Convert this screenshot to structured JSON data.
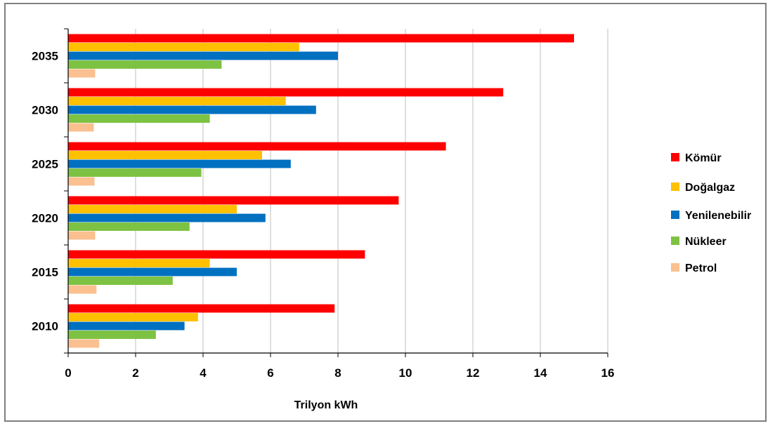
{
  "chart_data": {
    "type": "bar",
    "orientation": "horizontal",
    "title": "",
    "xlabel": "Trilyon kWh",
    "ylabel": "",
    "xlim": [
      0,
      16
    ],
    "x_ticks": [
      "0",
      "2",
      "4",
      "6",
      "8",
      "10",
      "12",
      "14",
      "16"
    ],
    "grid": "vertical",
    "legend_position": "right",
    "categories": [
      "2010",
      "2015",
      "2020",
      "2025",
      "2030",
      "2035"
    ],
    "series": [
      {
        "name": "Kömür",
        "color": "#ff0000",
        "values": [
          7.9,
          8.8,
          9.8,
          11.2,
          12.9,
          15.0
        ]
      },
      {
        "name": "Doğalgaz",
        "color": "#ffc000",
        "values": [
          3.85,
          4.2,
          5.0,
          5.75,
          6.45,
          6.85
        ]
      },
      {
        "name": "Yenilenebilir",
        "color": "#0070c0",
        "values": [
          3.45,
          5.0,
          5.85,
          6.6,
          7.35,
          8.0
        ]
      },
      {
        "name": "Nükleer",
        "color": "#7dc242",
        "values": [
          2.6,
          3.1,
          3.6,
          3.95,
          4.2,
          4.55
        ]
      },
      {
        "name": "Petrol",
        "color": "#fac090",
        "values": [
          0.92,
          0.84,
          0.8,
          0.78,
          0.76,
          0.8
        ]
      }
    ]
  }
}
